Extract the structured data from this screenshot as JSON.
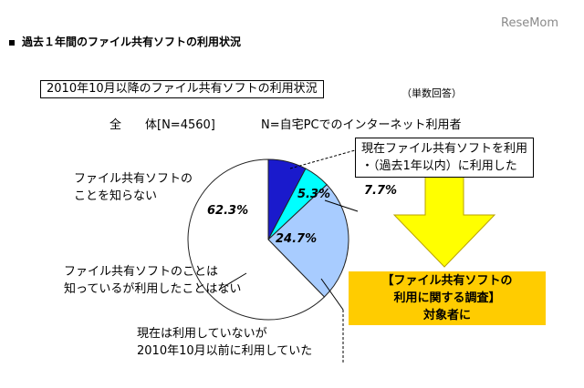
{
  "header": {
    "logo": "ReseMom",
    "title": "過去１年間のファイル共有ソフトの利用状況"
  },
  "chart_data": {
    "type": "pie",
    "title": "2010年10月以降のファイル共有ソフトの利用状況",
    "unit_note": "（単数回答）",
    "total_label": "全　　体[N=4560]",
    "base_note": "N=自宅PCでのインターネット利用者",
    "slices": [
      {
        "label_lines": [
          "現在ファイル共有ソフトを利用",
          "・（過去1年以内）に利用した"
        ],
        "value": 7.7,
        "value_label": "7.7%",
        "color": "#1a1acc"
      },
      {
        "label_lines": [
          "現在は利用していないが",
          "2010年10月以前に利用していた"
        ],
        "value": 5.3,
        "value_label": "5.3%",
        "color": "#00ffff"
      },
      {
        "label_lines": [
          "ファイル共有ソフトのことは",
          "知っているが利用したことはない"
        ],
        "value": 24.7,
        "value_label": "24.7%",
        "color": "#a8ccff"
      },
      {
        "label_lines": [
          "ファイル共有ソフトの",
          "ことを知らない"
        ],
        "value": 62.3,
        "value_label": "62.3%",
        "color": "#ffffff"
      }
    ],
    "start_angle_deg": 0,
    "direction": "clockwise"
  },
  "result_box": {
    "line1": "【ファイル共有ソフトの",
    "line2": "利用に関する調査】",
    "line3": "対象者に"
  },
  "colors": {
    "arrow_fill": "#ffff00",
    "arrow_stroke": "#b8a000",
    "result_bg": "#ffcc00"
  }
}
